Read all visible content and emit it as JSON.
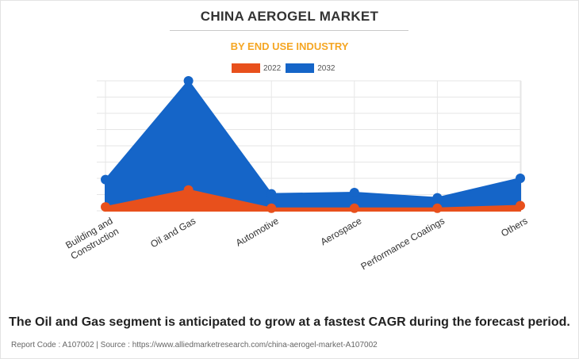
{
  "header": {
    "title": "CHINA AEROGEL MARKET",
    "subtitle": "BY END USE INDUSTRY"
  },
  "colors": {
    "series_2022": "#e8501c",
    "series_2032": "#1565c8",
    "subtitle": "#f5a623"
  },
  "chart_data": {
    "type": "area",
    "title": "CHINA AEROGEL MARKET",
    "subtitle": "BY END USE INDUSTRY",
    "categories": [
      "Building and Construction",
      "Oil and Gas",
      "Automotive",
      "Aerospace",
      "Performance Coatings",
      "Others"
    ],
    "category_lines": [
      [
        "Building and",
        "Construction"
      ],
      [
        "Oil and Gas"
      ],
      [
        "Automotive"
      ],
      [
        "Aerospace"
      ],
      [
        "Performance Coatings"
      ],
      [
        "Others"
      ]
    ],
    "series": [
      {
        "name": "2022",
        "values": [
          3,
          16,
          2,
          2,
          2,
          4
        ]
      },
      {
        "name": "2032",
        "values": [
          24,
          100,
          13,
          14,
          10,
          25
        ]
      }
    ],
    "ylim": [
      0,
      100
    ],
    "grid": true,
    "legend": "top-center",
    "xlabel": "",
    "ylabel": ""
  },
  "footer": {
    "note": "The Oil and Gas segment is anticipated to grow at a fastest CAGR during the forecast period.",
    "source": "Report Code : A107002  |  Source : https://www.alliedmarketresearch.com/china-aerogel-market-A107002"
  }
}
